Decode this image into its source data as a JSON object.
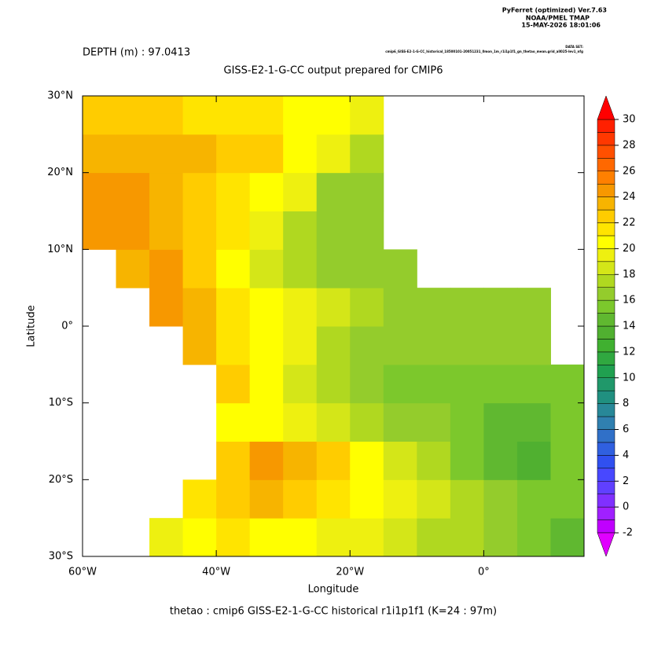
{
  "chart_data": {
    "type": "heatmap",
    "header": [
      "PyFerret (optimized) Ver.7.63",
      "NOAA/PMEL TMAP",
      "15-MAY-2026 18:01:06"
    ],
    "dataset_label": "DATA SET:",
    "dataset": "cmip6_GISS-E2-1-G-CC_historical_18500101-20051231_0mon_1m_r1i1p1f1_gn_thetao_mean.grid_all025-lev1_nfg",
    "subtitle": "DEPTH (m) : 97.0413",
    "title": "GISS-E2-1-G-CC output prepared for CMIP6",
    "x_label": "Longitude",
    "y_label": "Latitude",
    "footer": "thetao : cmip6 GISS-E2-1-G-CC historical r1i1p1f1   (K=24 : 97m)",
    "xlim": [
      -60,
      15
    ],
    "ylim": [
      -30,
      30
    ],
    "xticks": [
      {
        "value": -60,
        "label": "60°W"
      },
      {
        "value": -40,
        "label": "40°W"
      },
      {
        "value": -20,
        "label": "20°W"
      },
      {
        "value": 0,
        "label": "0°"
      }
    ],
    "yticks": [
      {
        "value": -30,
        "label": "30°S"
      },
      {
        "value": -20,
        "label": "20°S"
      },
      {
        "value": -10,
        "label": "10°S"
      },
      {
        "value": 0,
        "label": "0°"
      },
      {
        "value": 10,
        "label": "10°N"
      },
      {
        "value": 20,
        "label": "20°N"
      },
      {
        "value": 30,
        "label": "30°N"
      }
    ],
    "x_bins": [
      -60,
      -55,
      -50,
      -45,
      -40,
      -35,
      -30,
      -25,
      -20,
      -15,
      -10,
      -5,
      0,
      5,
      10,
      15
    ],
    "y_bins": [
      -30,
      -25,
      -20,
      -15,
      -10,
      -5,
      0,
      5,
      10,
      15,
      20,
      25,
      30
    ],
    "z": [
      [
        null,
        null,
        19,
        20,
        21,
        20,
        20,
        19,
        19,
        18,
        17,
        17,
        16,
        15,
        14
      ],
      [
        null,
        null,
        null,
        21,
        22,
        23,
        22,
        21,
        20,
        19,
        18,
        17,
        16,
        15,
        15
      ],
      [
        null,
        null,
        null,
        null,
        22,
        24,
        23,
        22,
        20,
        18,
        17,
        15,
        14,
        13,
        15
      ],
      [
        null,
        null,
        null,
        null,
        20,
        20,
        19,
        18,
        17,
        16,
        16,
        15,
        14,
        14,
        15
      ],
      [
        null,
        null,
        null,
        null,
        22,
        20,
        18,
        17,
        16,
        15,
        15,
        15,
        15,
        15,
        15
      ],
      [
        null,
        null,
        null,
        23,
        21,
        20,
        19,
        17,
        16,
        16,
        16,
        16,
        16,
        16,
        null
      ],
      [
        null,
        null,
        24,
        23,
        21,
        20,
        19,
        18,
        17,
        16,
        16,
        16,
        16,
        16,
        null
      ],
      [
        null,
        23,
        24,
        22,
        20,
        18,
        17,
        16,
        16,
        16,
        null,
        null,
        null,
        null,
        null
      ],
      [
        24,
        24,
        23,
        22,
        21,
        19,
        17,
        16,
        16,
        null,
        null,
        null,
        null,
        null,
        null
      ],
      [
        24,
        24,
        23,
        22,
        21,
        20,
        19,
        16,
        16,
        null,
        null,
        null,
        null,
        null,
        null
      ],
      [
        23,
        23,
        23,
        23,
        22,
        22,
        20,
        19,
        17,
        null,
        null,
        null,
        null,
        null,
        null
      ],
      [
        22,
        22,
        22,
        21,
        21,
        21,
        20,
        20,
        19,
        null,
        null,
        null,
        null,
        null,
        null
      ]
    ],
    "levels": [
      -2,
      30
    ],
    "colorbar_ticks": [
      -2,
      0,
      2,
      4,
      6,
      8,
      10,
      12,
      14,
      16,
      18,
      20,
      22,
      24,
      26,
      28,
      30
    ],
    "colors": [
      "#c000ff",
      "#a020ff",
      "#8030ff",
      "#6040ff",
      "#4848ff",
      "#3050f0",
      "#3060e0",
      "#3070c8",
      "#3080b0",
      "#288898",
      "#209080",
      "#20986a",
      "#20a050",
      "#30a840",
      "#40b030",
      "#50b030",
      "#60b830",
      "#7cc82c",
      "#94cc2c",
      "#b0d820",
      "#d4e618",
      "#eef010",
      "#ffff00",
      "#ffe400",
      "#ffcc00",
      "#f7b400",
      "#f79800",
      "#ff8000",
      "#ff6800",
      "#ff5000",
      "#ff3800",
      "#ff2000"
    ],
    "under_color": "#e000ff",
    "over_color": "#ff0000"
  }
}
